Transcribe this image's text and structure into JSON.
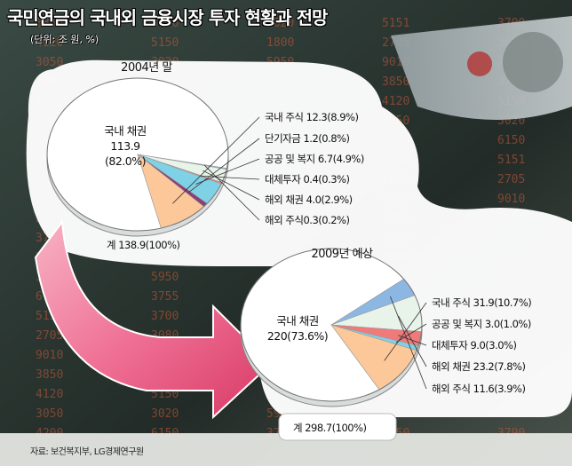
{
  "header": {
    "title": "국민연금의 국내외 금융시장 투자 현황과 전망",
    "unit": "(단위: 조 원, %)"
  },
  "source": "자료: 보건복지부, LG경제연구원",
  "colors": {
    "domestic_bond": "#ffffff",
    "domestic_stock": "#fcc89a",
    "short_term": "#8a3d78",
    "public_welfare": "#7fd2e6",
    "alternative": "#f07a7a",
    "overseas_bond": "#e8f3e9",
    "overseas_stock": "#8db7e3",
    "arrow": "#e0557a"
  },
  "chart_data": [
    {
      "type": "pie",
      "title": "2004년 말",
      "total_label": "계 138.9(100%)",
      "center_label": [
        "국내 채권",
        "113.9",
        "(82.0%)"
      ],
      "slices": [
        {
          "name": "국내 채권",
          "value": 113.9,
          "percent": 82.0,
          "color_key": "domestic_bond"
        },
        {
          "name": "해외 주식",
          "value": 0.3,
          "percent": 0.2,
          "color_key": "overseas_stock",
          "label": "해외 주식0.3(0.2%)"
        },
        {
          "name": "해외 채권",
          "value": 4.0,
          "percent": 2.9,
          "color_key": "overseas_bond",
          "label": "해외 채권 4.0(2.9%)"
        },
        {
          "name": "대체투자",
          "value": 0.4,
          "percent": 0.3,
          "color_key": "alternative",
          "label": "대체투자 0.4(0.3%)"
        },
        {
          "name": "공공 및 복지",
          "value": 6.7,
          "percent": 4.9,
          "color_key": "public_welfare",
          "label": "공공 및 복지 6.7(4.9%)"
        },
        {
          "name": "단기자금",
          "value": 1.2,
          "percent": 0.8,
          "color_key": "short_term",
          "label": "단기자금 1.2(0.8%)"
        },
        {
          "name": "국내 주식",
          "value": 12.3,
          "percent": 8.9,
          "color_key": "domestic_stock",
          "label": "국내 주식 12.3(8.9%)"
        }
      ]
    },
    {
      "type": "pie",
      "title": "2009년 예상",
      "total_label": "계 298.7(100%)",
      "center_label": [
        "국내 채권",
        "220(73.6%)"
      ],
      "slices": [
        {
          "name": "국내 채권",
          "value": 220,
          "percent": 73.6,
          "color_key": "domestic_bond"
        },
        {
          "name": "해외 주식",
          "value": 11.6,
          "percent": 3.9,
          "color_key": "overseas_stock",
          "label": "해외 주식 11.6(3.9%)"
        },
        {
          "name": "해외 채권",
          "value": 23.2,
          "percent": 7.8,
          "color_key": "overseas_bond",
          "label": "해외 채권 23.2(7.8%)"
        },
        {
          "name": "대체투자",
          "value": 9.0,
          "percent": 3.0,
          "color_key": "alternative",
          "label": "대체투자 9.0(3.0%)"
        },
        {
          "name": "공공 및 복지",
          "value": 3.0,
          "percent": 1.0,
          "color_key": "public_welfare",
          "label": "공공 및 복지 3.0(1.0%)"
        },
        {
          "name": "국내 주식",
          "value": 31.9,
          "percent": 10.7,
          "color_key": "domestic_stock",
          "label": "국내 주식 31.9(10.7%)"
        }
      ]
    }
  ]
}
